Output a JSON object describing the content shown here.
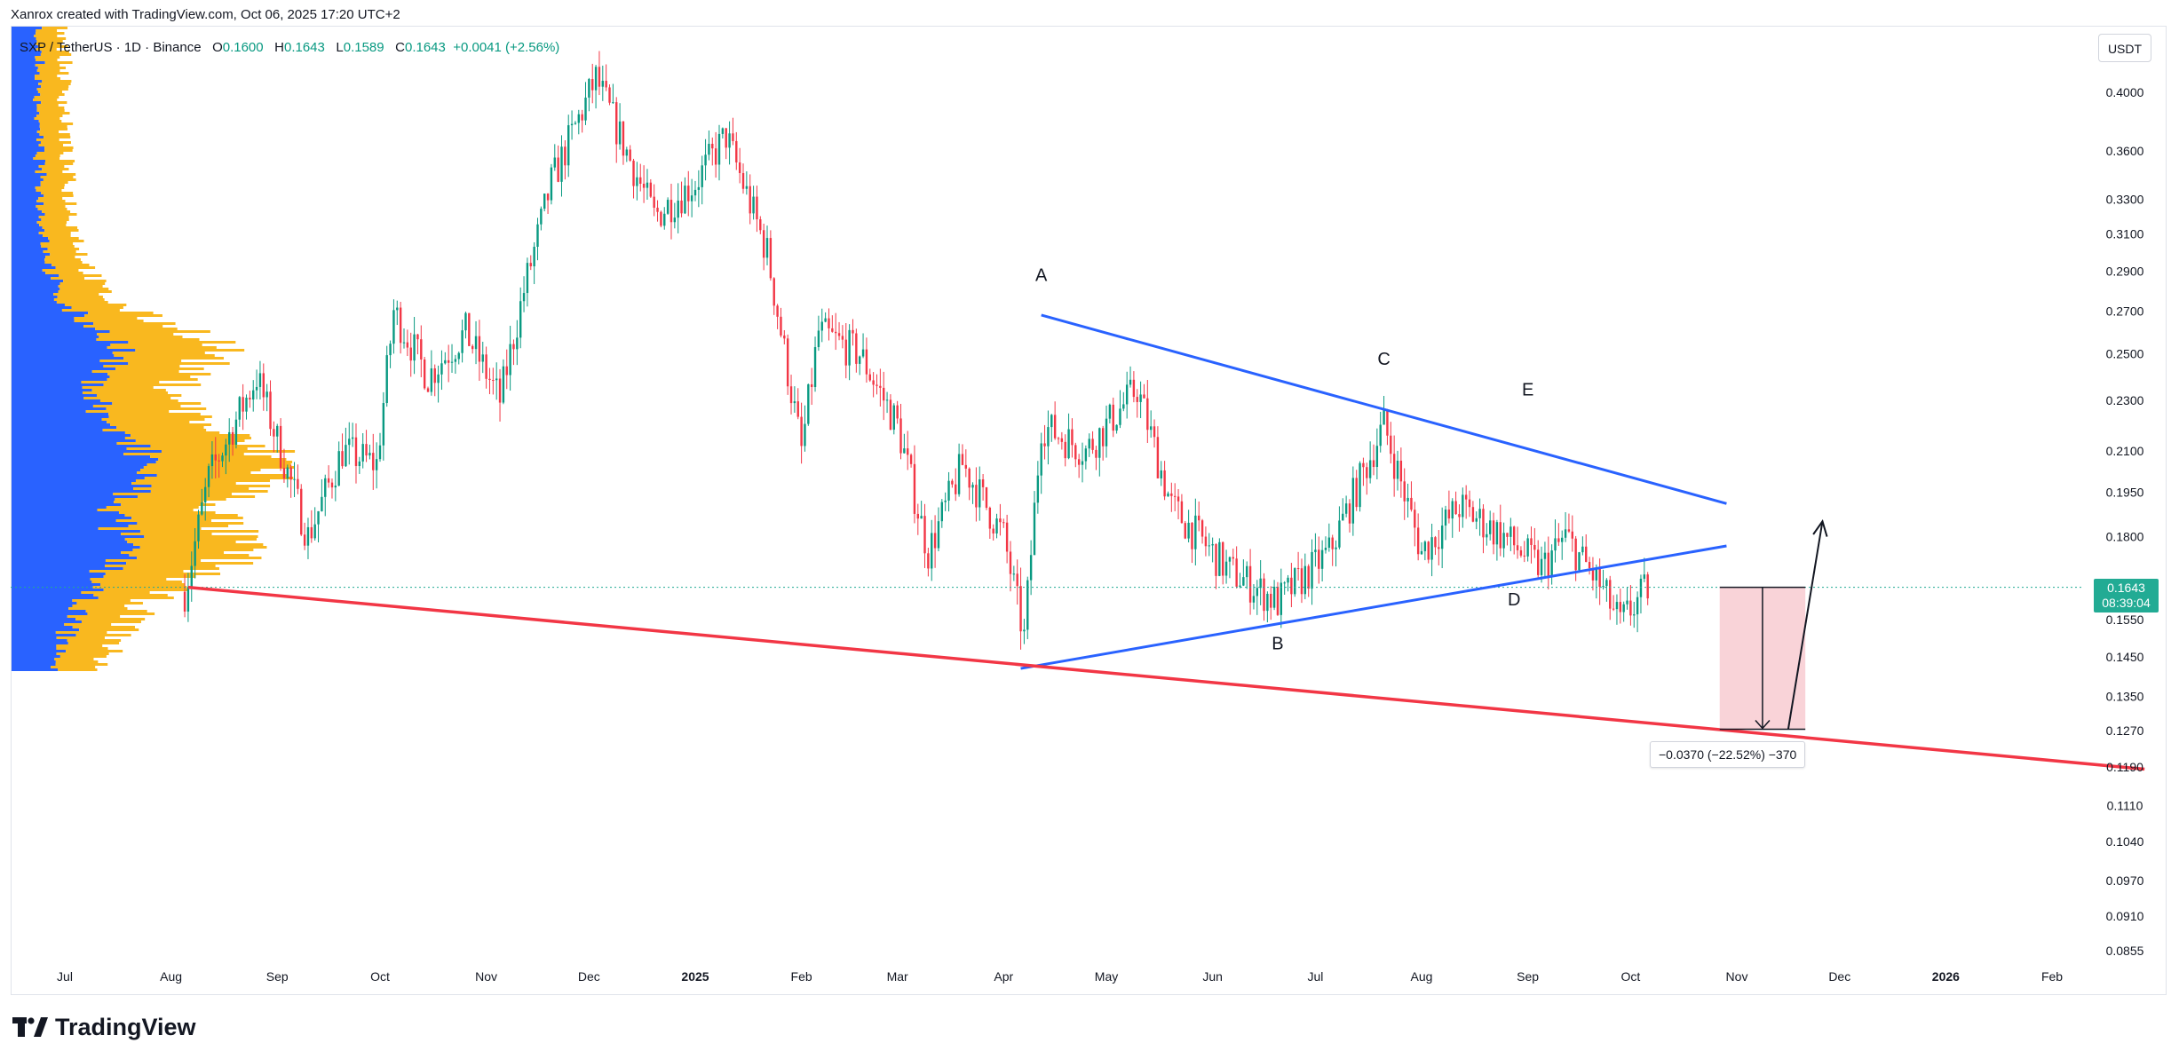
{
  "header": {
    "caption": "Xanrox created with TradingView.com, Oct 06, 2025 17:20 UTC+2"
  },
  "legend": {
    "symbol": "SXP / TetherUS · 1D · Binance",
    "o_label": "O",
    "o_value": "0.1600",
    "h_label": "H",
    "h_value": "0.1643",
    "l_label": "L",
    "l_value": "0.1589",
    "c_label": "C",
    "c_value": "0.1643",
    "change": "+0.0041 (+2.56%)"
  },
  "currency_button": "USDT",
  "current_price": {
    "value": "0.1643",
    "countdown": "08:39:04"
  },
  "measure": {
    "label": "−0.0370 (−22.52%) −370"
  },
  "brand": {
    "name": "TradingView"
  },
  "colors": {
    "up": "#089981",
    "down": "#f23645",
    "triangle": "#2962ff",
    "support": "#f23645",
    "vp_blue": "#2962ff",
    "vp_orange": "#f9b81f",
    "badge": "#22ab94",
    "measure_fill": "#f7c1c8"
  },
  "chart_data": {
    "type": "candlestick",
    "symbol": "SXP / TetherUS",
    "interval": "1D",
    "exchange": "Binance",
    "y_scale": "log",
    "ylim": [
      0.082,
      0.43
    ],
    "y_ticks": [
      "0.4000",
      "0.3600",
      "0.3300",
      "0.3100",
      "0.2900",
      "0.2700",
      "0.2500",
      "0.2300",
      "0.2100",
      "0.1950",
      "0.1800",
      "0.1550",
      "0.1450",
      "0.1350",
      "0.1270",
      "0.1190",
      "0.1110",
      "0.1040",
      "0.0970",
      "0.0910",
      "0.0855"
    ],
    "x_ticks": [
      "Jul",
      "Aug",
      "Sep",
      "Oct",
      "Nov",
      "Dec",
      "2025",
      "Feb",
      "Mar",
      "Apr",
      "May",
      "Jun",
      "Jul",
      "Aug",
      "Sep",
      "Oct",
      "Nov",
      "Dec",
      "2026",
      "Feb"
    ],
    "x_tick_dates": [
      "2024-07-01",
      "2024-08-01",
      "2024-09-01",
      "2024-10-01",
      "2024-11-01",
      "2024-12-01",
      "2025-01-01",
      "2025-02-01",
      "2025-03-01",
      "2025-04-01",
      "2025-05-01",
      "2025-06-01",
      "2025-07-01",
      "2025-08-01",
      "2025-09-01",
      "2025-10-01",
      "2025-11-01",
      "2025-12-01",
      "2026-01-01",
      "2026-02-01"
    ],
    "price_path": [
      [
        "2024-08-05",
        0.163
      ],
      [
        "2024-08-12",
        0.2
      ],
      [
        "2024-08-26",
        0.24
      ],
      [
        "2024-09-10",
        0.18
      ],
      [
        "2024-09-20",
        0.21
      ],
      [
        "2024-09-30",
        0.205
      ],
      [
        "2024-10-05",
        0.27
      ],
      [
        "2024-10-15",
        0.24
      ],
      [
        "2024-10-26",
        0.26
      ],
      [
        "2024-11-05",
        0.23
      ],
      [
        "2024-11-12",
        0.28
      ],
      [
        "2024-11-20",
        0.34
      ],
      [
        "2024-12-03",
        0.41
      ],
      [
        "2024-12-10",
        0.37
      ],
      [
        "2024-12-20",
        0.32
      ],
      [
        "2025-01-01",
        0.34
      ],
      [
        "2025-01-10",
        0.37
      ],
      [
        "2025-01-22",
        0.3
      ],
      [
        "2025-02-01",
        0.21
      ],
      [
        "2025-02-06",
        0.26
      ],
      [
        "2025-02-18",
        0.25
      ],
      [
        "2025-03-01",
        0.22
      ],
      [
        "2025-03-10",
        0.175
      ],
      [
        "2025-03-20",
        0.205
      ],
      [
        "2025-04-01",
        0.18
      ],
      [
        "2025-04-07",
        0.15
      ],
      [
        "2025-04-12",
        0.22
      ],
      [
        "2025-04-25",
        0.21
      ],
      [
        "2025-05-10",
        0.235
      ],
      [
        "2025-05-20",
        0.19
      ],
      [
        "2025-06-05",
        0.17
      ],
      [
        "2025-06-20",
        0.16
      ],
      [
        "2025-07-05",
        0.175
      ],
      [
        "2025-07-21",
        0.22
      ],
      [
        "2025-08-01",
        0.175
      ],
      [
        "2025-08-12",
        0.19
      ],
      [
        "2025-08-25",
        0.18
      ],
      [
        "2025-09-05",
        0.17
      ],
      [
        "2025-09-12",
        0.18
      ],
      [
        "2025-09-22",
        0.165
      ],
      [
        "2025-09-28",
        0.154
      ],
      [
        "2025-10-06",
        0.1643
      ]
    ],
    "lines": [
      {
        "name": "triangle-upper",
        "color": "#2962ff",
        "from": [
          "2025-04-12",
          0.268
        ],
        "to": [
          "2025-10-29",
          0.191
        ]
      },
      {
        "name": "triangle-lower",
        "color": "#2962ff",
        "from": [
          "2025-04-06",
          0.142
        ],
        "to": [
          "2025-10-29",
          0.177
        ]
      },
      {
        "name": "support",
        "color": "#f23645",
        "from": [
          "2024-08-06",
          0.1643
        ],
        "to": [
          "2026-02-28",
          0.1185
        ]
      }
    ],
    "annotations": [
      {
        "text": "A",
        "date": "2025-04-12",
        "price": 0.285
      },
      {
        "text": "B",
        "date": "2025-06-20",
        "price": 0.147
      },
      {
        "text": "C",
        "date": "2025-07-21",
        "price": 0.245
      },
      {
        "text": "D",
        "date": "2025-08-28",
        "price": 0.159
      },
      {
        "text": "E",
        "date": "2025-09-01",
        "price": 0.232
      }
    ],
    "measure": {
      "from_price": 0.1643,
      "to_price": 0.1273,
      "change": "−0.0370 (−22.52%) −370"
    },
    "arrow": {
      "from": [
        "2025-11-16",
        0.1273
      ],
      "to": [
        "2025-11-26",
        0.185
      ]
    },
    "current_price": 0.1643,
    "volume_profile": true
  }
}
